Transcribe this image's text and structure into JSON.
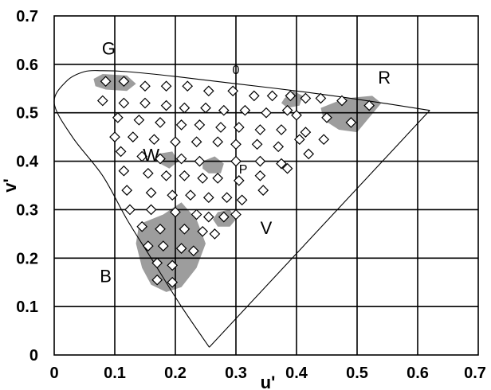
{
  "chart_data": {
    "type": "scatter",
    "xlabel": "u'",
    "ylabel": "v'",
    "xlim": [
      0,
      0.7
    ],
    "ylim": [
      0,
      0.7
    ],
    "xticks": [
      "0",
      "0.1",
      "0.2",
      "0.3",
      "0.4",
      "0.5",
      "0.6",
      "0.7"
    ],
    "yticks": [
      "0",
      "0.1",
      "0.2",
      "0.3",
      "0.4",
      "0.5",
      "0.6",
      "0.7"
    ],
    "grid": true,
    "colors": {
      "cluster": "#8c8c8c",
      "marker_fill": "#ffffff",
      "line": "#000000"
    },
    "annotations": [
      {
        "text": "G",
        "x": 0.09,
        "y": 0.62
      },
      {
        "text": "0",
        "x": 0.3,
        "y": 0.58
      },
      {
        "text": "R",
        "x": 0.545,
        "y": 0.56
      },
      {
        "text": "W",
        "x": 0.16,
        "y": 0.4
      },
      {
        "text": "P",
        "x": 0.312,
        "y": 0.375
      },
      {
        "text": "V",
        "x": 0.35,
        "y": 0.25
      },
      {
        "text": "B",
        "x": 0.085,
        "y": 0.15
      }
    ],
    "spectral_locus": [
      [
        0.256,
        0.016
      ],
      [
        0.21,
        0.1
      ],
      [
        0.16,
        0.2
      ],
      [
        0.12,
        0.28
      ],
      [
        0.08,
        0.37
      ],
      [
        0.03,
        0.45
      ],
      [
        0.0,
        0.52
      ],
      [
        0.02,
        0.565
      ],
      [
        0.05,
        0.585
      ],
      [
        0.08,
        0.587
      ],
      [
        0.12,
        0.585
      ],
      [
        0.2,
        0.575
      ],
      [
        0.3,
        0.56
      ],
      [
        0.4,
        0.545
      ],
      [
        0.5,
        0.528
      ],
      [
        0.62,
        0.505
      ]
    ],
    "purple_line": [
      [
        0.62,
        0.505
      ],
      [
        0.256,
        0.016
      ]
    ],
    "clusters": [
      {
        "points": [
          [
            0.065,
            0.57
          ],
          [
            0.08,
            0.58
          ],
          [
            0.12,
            0.577
          ],
          [
            0.135,
            0.56
          ],
          [
            0.12,
            0.545
          ],
          [
            0.085,
            0.548
          ],
          [
            0.068,
            0.555
          ]
        ]
      },
      {
        "points": [
          [
            0.38,
            0.53
          ],
          [
            0.395,
            0.545
          ],
          [
            0.41,
            0.535
          ],
          [
            0.405,
            0.515
          ],
          [
            0.385,
            0.51
          ],
          [
            0.375,
            0.52
          ]
        ]
      },
      {
        "points": [
          [
            0.44,
            0.51
          ],
          [
            0.48,
            0.53
          ],
          [
            0.525,
            0.535
          ],
          [
            0.54,
            0.52
          ],
          [
            0.52,
            0.49
          ],
          [
            0.5,
            0.46
          ],
          [
            0.47,
            0.465
          ],
          [
            0.445,
            0.485
          ]
        ]
      },
      {
        "points": [
          [
            0.245,
            0.4
          ],
          [
            0.265,
            0.41
          ],
          [
            0.28,
            0.395
          ],
          [
            0.275,
            0.375
          ],
          [
            0.255,
            0.375
          ],
          [
            0.245,
            0.385
          ]
        ]
      },
      {
        "points": [
          [
            0.17,
            0.415
          ],
          [
            0.195,
            0.42
          ],
          [
            0.205,
            0.4
          ],
          [
            0.19,
            0.385
          ],
          [
            0.175,
            0.395
          ]
        ]
      },
      {
        "points": [
          [
            0.27,
            0.295
          ],
          [
            0.29,
            0.3
          ],
          [
            0.3,
            0.28
          ],
          [
            0.29,
            0.265
          ],
          [
            0.27,
            0.265
          ],
          [
            0.262,
            0.28
          ]
        ]
      },
      {
        "points": [
          [
            0.14,
            0.27
          ],
          [
            0.18,
            0.29
          ],
          [
            0.21,
            0.315
          ],
          [
            0.235,
            0.28
          ],
          [
            0.25,
            0.23
          ],
          [
            0.235,
            0.18
          ],
          [
            0.21,
            0.14
          ],
          [
            0.185,
            0.13
          ],
          [
            0.16,
            0.145
          ],
          [
            0.145,
            0.18
          ],
          [
            0.135,
            0.23
          ]
        ]
      }
    ],
    "series": [
      {
        "values": [
          [
            0.085,
            0.565
          ],
          [
            0.115,
            0.565
          ],
          [
            0.15,
            0.555
          ],
          [
            0.185,
            0.555
          ],
          [
            0.22,
            0.555
          ],
          [
            0.255,
            0.545
          ],
          [
            0.295,
            0.545
          ],
          [
            0.33,
            0.535
          ],
          [
            0.36,
            0.535
          ],
          [
            0.39,
            0.535
          ],
          [
            0.415,
            0.53
          ],
          [
            0.44,
            0.53
          ],
          [
            0.475,
            0.525
          ],
          [
            0.52,
            0.515
          ],
          [
            0.08,
            0.525
          ],
          [
            0.115,
            0.52
          ],
          [
            0.15,
            0.52
          ],
          [
            0.185,
            0.515
          ],
          [
            0.215,
            0.51
          ],
          [
            0.25,
            0.51
          ],
          [
            0.28,
            0.505
          ],
          [
            0.315,
            0.505
          ],
          [
            0.35,
            0.5
          ],
          [
            0.385,
            0.505
          ],
          [
            0.4,
            0.495
          ],
          [
            0.45,
            0.49
          ],
          [
            0.49,
            0.48
          ],
          [
            0.105,
            0.49
          ],
          [
            0.14,
            0.485
          ],
          [
            0.175,
            0.48
          ],
          [
            0.21,
            0.475
          ],
          [
            0.24,
            0.475
          ],
          [
            0.275,
            0.47
          ],
          [
            0.305,
            0.47
          ],
          [
            0.34,
            0.465
          ],
          [
            0.375,
            0.465
          ],
          [
            0.415,
            0.46
          ],
          [
            0.1,
            0.45
          ],
          [
            0.13,
            0.45
          ],
          [
            0.165,
            0.445
          ],
          [
            0.2,
            0.44
          ],
          [
            0.235,
            0.44
          ],
          [
            0.27,
            0.44
          ],
          [
            0.3,
            0.435
          ],
          [
            0.335,
            0.435
          ],
          [
            0.37,
            0.43
          ],
          [
            0.405,
            0.445
          ],
          [
            0.445,
            0.445
          ],
          [
            0.11,
            0.42
          ],
          [
            0.145,
            0.41
          ],
          [
            0.175,
            0.405
          ],
          [
            0.21,
            0.405
          ],
          [
            0.24,
            0.4
          ],
          [
            0.3,
            0.4
          ],
          [
            0.34,
            0.4
          ],
          [
            0.375,
            0.395
          ],
          [
            0.42,
            0.415
          ],
          [
            0.115,
            0.38
          ],
          [
            0.155,
            0.375
          ],
          [
            0.185,
            0.37
          ],
          [
            0.215,
            0.37
          ],
          [
            0.245,
            0.365
          ],
          [
            0.27,
            0.365
          ],
          [
            0.305,
            0.36
          ],
          [
            0.34,
            0.37
          ],
          [
            0.385,
            0.385
          ],
          [
            0.12,
            0.34
          ],
          [
            0.16,
            0.335
          ],
          [
            0.195,
            0.33
          ],
          [
            0.225,
            0.33
          ],
          [
            0.255,
            0.325
          ],
          [
            0.285,
            0.325
          ],
          [
            0.31,
            0.32
          ],
          [
            0.345,
            0.34
          ],
          [
            0.125,
            0.3
          ],
          [
            0.16,
            0.3
          ],
          [
            0.2,
            0.295
          ],
          [
            0.235,
            0.29
          ],
          [
            0.255,
            0.285
          ],
          [
            0.28,
            0.285
          ],
          [
            0.3,
            0.29
          ],
          [
            0.145,
            0.265
          ],
          [
            0.175,
            0.26
          ],
          [
            0.215,
            0.26
          ],
          [
            0.245,
            0.255
          ],
          [
            0.265,
            0.25
          ],
          [
            0.155,
            0.225
          ],
          [
            0.18,
            0.225
          ],
          [
            0.21,
            0.22
          ],
          [
            0.23,
            0.215
          ],
          [
            0.17,
            0.19
          ],
          [
            0.195,
            0.185
          ],
          [
            0.17,
            0.155
          ],
          [
            0.195,
            0.15
          ]
        ]
      }
    ]
  }
}
